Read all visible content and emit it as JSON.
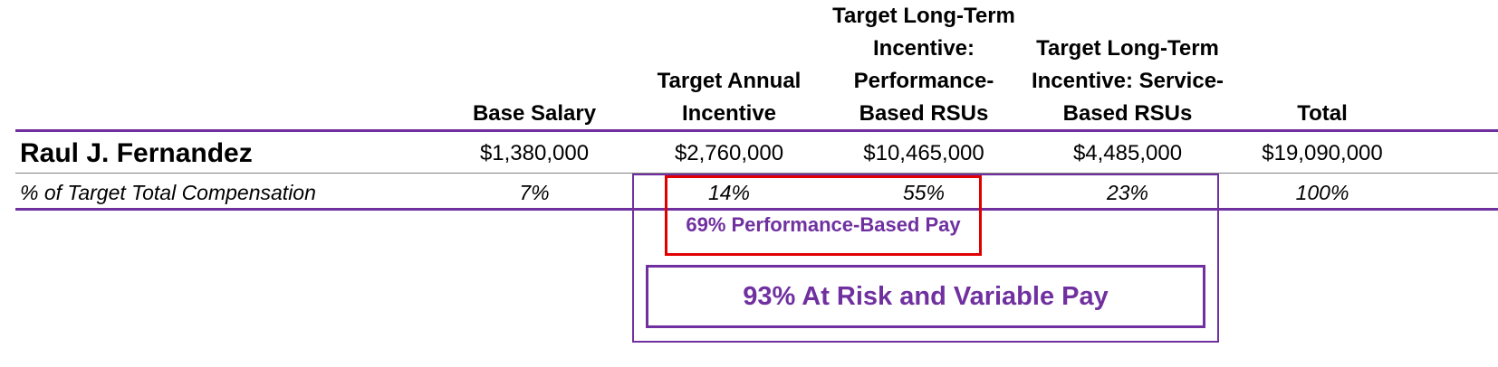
{
  "columns": [
    {
      "lines": [
        "Base Salary"
      ]
    },
    {
      "lines": [
        "Target Annual",
        "Incentive"
      ]
    },
    {
      "lines": [
        "Target Long-Term",
        "Incentive:",
        "Performance-",
        "Based RSUs"
      ]
    },
    {
      "lines": [
        "Target Long-Term",
        "Incentive: Service-",
        "Based RSUs"
      ]
    },
    {
      "lines": [
        "Total"
      ]
    }
  ],
  "executive": {
    "name": "Raul J. Fernandez",
    "values": [
      "$1,380,000",
      "$2,760,000",
      "$10,465,000",
      "$4,485,000",
      "$19,090,000"
    ]
  },
  "percent_row": {
    "label": "% of Target Total Compensation",
    "values": [
      "7%",
      "14%",
      "55%",
      "23%",
      "100%"
    ]
  },
  "callouts": {
    "performance_based": "69% Performance-Based Pay",
    "at_risk": "93% At Risk and Variable Pay"
  },
  "colors": {
    "purple": "#7030a0",
    "red": "#e00000",
    "rule_gray": "#808080"
  }
}
